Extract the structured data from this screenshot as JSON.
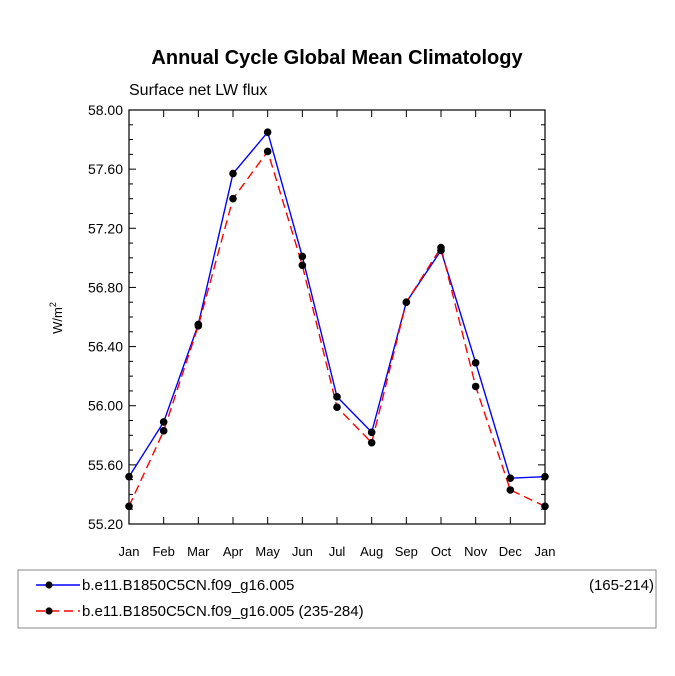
{
  "chart_data": {
    "type": "line",
    "title": "Annual Cycle Global Mean Climatology",
    "subtitle": "Surface net LW flux",
    "ylabel_base": "W/m",
    "ylabel_exp": "2",
    "xlabel": "",
    "categories": [
      "Jan",
      "Feb",
      "Mar",
      "Apr",
      "May",
      "Jun",
      "Jul",
      "Aug",
      "Sep",
      "Oct",
      "Nov",
      "Dec",
      "Jan"
    ],
    "ylim": [
      55.2,
      58.0
    ],
    "yticks": [
      "55.20",
      "55.60",
      "56.00",
      "56.40",
      "56.80",
      "57.20",
      "57.60",
      "58.00"
    ],
    "series": [
      {
        "name": "b.e11.B1850C5CN.f09_g16.005",
        "period": "(165-214)",
        "color": "#0000ff",
        "dash": "solid",
        "values": [
          55.52,
          55.89,
          56.55,
          57.57,
          57.85,
          57.01,
          56.06,
          55.82,
          56.7,
          57.05,
          56.29,
          55.51,
          55.52
        ]
      },
      {
        "name": "b.e11.B1850C5CN.f09_g16.005 (235-284)",
        "period": "",
        "color": "#ff0000",
        "dash": "dashed",
        "values": [
          55.32,
          55.83,
          56.54,
          57.4,
          57.72,
          56.95,
          55.99,
          55.75,
          56.7,
          57.07,
          56.13,
          55.43,
          55.32
        ]
      }
    ],
    "marker_color": "#000000"
  }
}
